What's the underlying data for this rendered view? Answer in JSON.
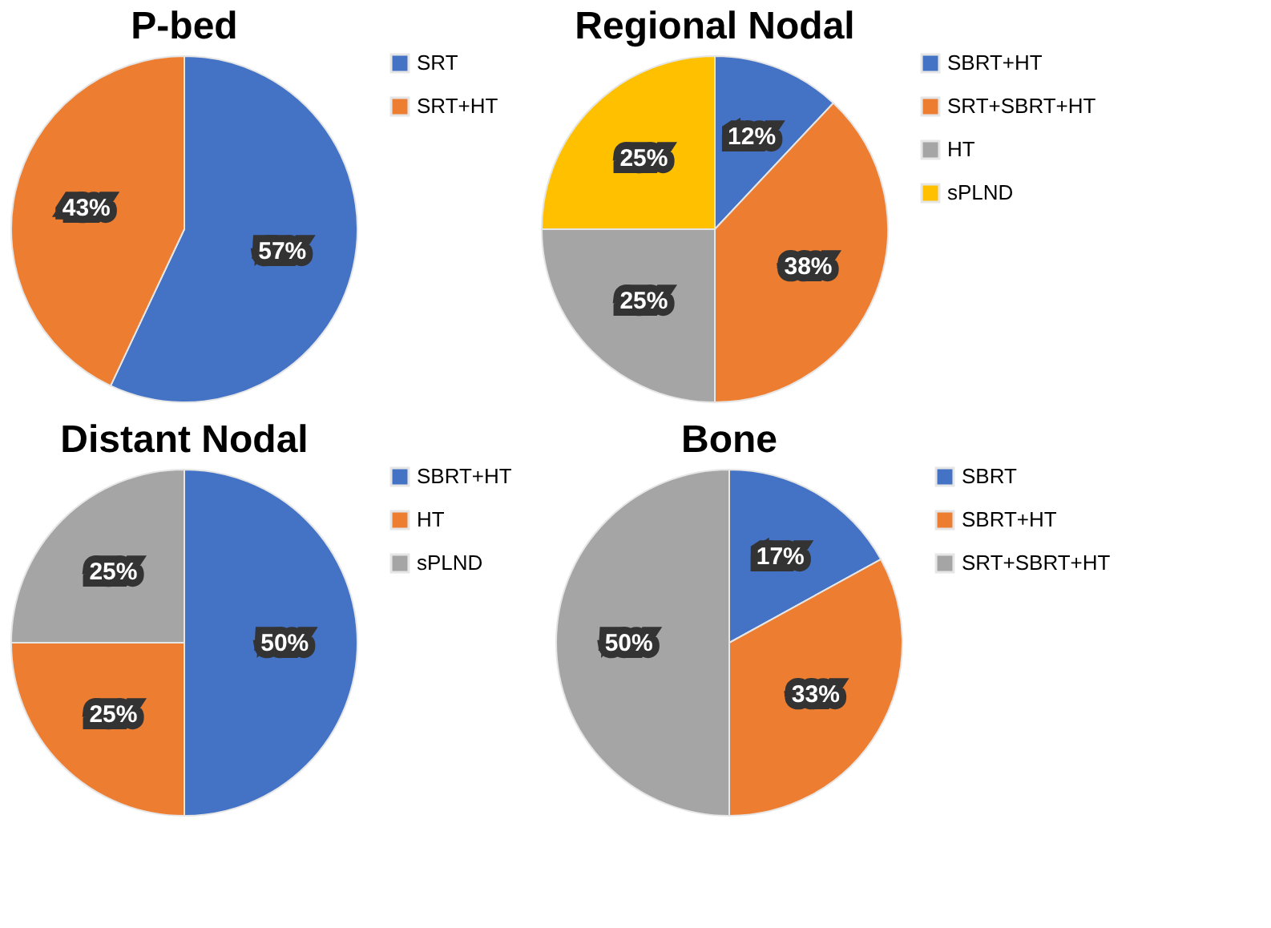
{
  "chart_data": [
    {
      "type": "pie",
      "title": "P-bed",
      "categories": [
        "SRT",
        "SRT+HT"
      ],
      "values": [
        57,
        43
      ],
      "colors": [
        "#4472c4",
        "#ed7d31"
      ],
      "value_labels": [
        "57%",
        "43%"
      ],
      "legend": "right"
    },
    {
      "type": "pie",
      "title": "Regional Nodal",
      "categories": [
        "SBRT+HT",
        "SRT+SBRT+HT",
        "HT",
        "sPLND"
      ],
      "values": [
        12,
        38,
        25,
        25
      ],
      "colors": [
        "#4472c4",
        "#ed7d31",
        "#a5a5a5",
        "#ffc000"
      ],
      "value_labels": [
        "12%",
        "38%",
        "25%",
        "25%"
      ],
      "legend": "right"
    },
    {
      "type": "pie",
      "title": "Distant Nodal",
      "categories": [
        "SBRT+HT",
        "HT",
        "sPLND"
      ],
      "values": [
        50,
        25,
        25
      ],
      "colors": [
        "#4472c4",
        "#ed7d31",
        "#a5a5a5"
      ],
      "value_labels": [
        "50%",
        "25%",
        "25%"
      ],
      "legend": "right"
    },
    {
      "type": "pie",
      "title": "Bone",
      "categories": [
        "SBRT",
        "SBRT+HT",
        "SRT+SBRT+HT"
      ],
      "values": [
        17,
        33,
        50
      ],
      "colors": [
        "#4472c4",
        "#ed7d31",
        "#a5a5a5"
      ],
      "value_labels": [
        "17%",
        "33%",
        "50%"
      ],
      "legend": "right"
    }
  ]
}
